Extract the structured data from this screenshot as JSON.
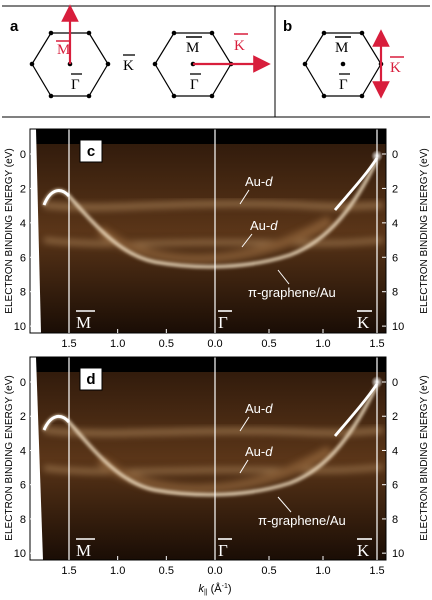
{
  "figure": {
    "panels": {
      "a": {
        "label": "a",
        "hex1": {
          "top": "M",
          "right": "K",
          "center": "Γ"
        },
        "hex2": {
          "top": "M",
          "right": "K",
          "center": "Γ"
        }
      },
      "b": {
        "label": "b",
        "hex": {
          "top": "M",
          "right": "K",
          "center": "Γ"
        }
      },
      "c": {
        "label": "c"
      },
      "d": {
        "label": "d"
      }
    },
    "annotations": {
      "au_d": "Au-d",
      "au_prefix": "Au-",
      "au_italic": "d",
      "pi_graphene": "π-graphene/Au"
    },
    "symmetry_points": {
      "M": "M",
      "Gamma": "Γ",
      "K": "K"
    },
    "x_axis": {
      "label_base": "k",
      "label_sub": "||",
      "label_unit": " (Å",
      "label_exp": "-1",
      "label_close": ")",
      "tick_labels": [
        "1.5",
        "1.0",
        "0.5",
        "0.0",
        "0.5",
        "1.0",
        "1.5"
      ]
    },
    "y_axis": {
      "label": "ELECTRON BINDING ENERGY (eV)",
      "tick_labels": [
        "0",
        "2",
        "4",
        "6",
        "8",
        "10"
      ]
    },
    "colors": {
      "accent_arrow": "#d81e3c",
      "map_bg": "#1a0d05",
      "band": "#f3dcb8"
    }
  },
  "chart_data": {
    "type": "heatmap",
    "x_path": "M-Γ-K",
    "x_ticks_inv_A": [
      1.5,
      1.0,
      0.5,
      0.0,
      0.5,
      1.0,
      1.5
    ],
    "y_range_eV": [
      0,
      11
    ],
    "y_ticks_eV": [
      0,
      2,
      4,
      6,
      8,
      10
    ],
    "xlabel": "k|| (Å-1)",
    "ylabel": "ELECTRON BINDING ENERGY (eV)"
  }
}
